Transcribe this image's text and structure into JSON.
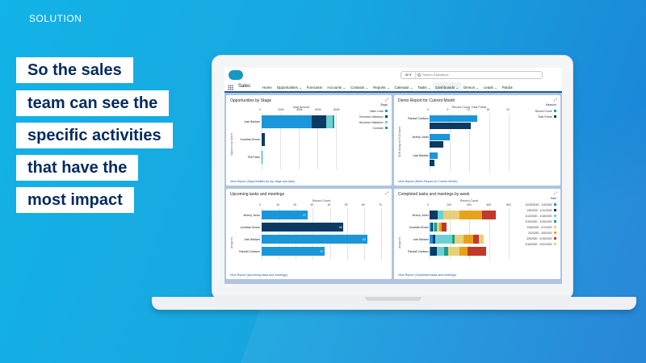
{
  "slide": {
    "label": "SOLUTION",
    "headline": [
      "So the sales",
      "team can see the",
      "specific activities",
      "that have the",
      "most impact"
    ]
  },
  "sf": {
    "search_scope": "All",
    "search_placeholder": "Search Salesforce",
    "app_name": "Sales",
    "nav": [
      {
        "label": "Home",
        "chev": false
      },
      {
        "label": "Opportunities",
        "chev": true
      },
      {
        "label": "Forecasts",
        "chev": false
      },
      {
        "label": "Accounts",
        "chev": true
      },
      {
        "label": "Contacts",
        "chev": true
      },
      {
        "label": "Reports",
        "chev": true
      },
      {
        "label": "Calendar",
        "chev": true
      },
      {
        "label": "Tasks",
        "chev": true
      },
      {
        "label": "Dashboards",
        "chev": true,
        "active": true
      },
      {
        "label": "Demos",
        "chev": true
      },
      {
        "label": "Leads",
        "chev": true
      },
      {
        "label": "Pardot",
        "chev": false
      }
    ]
  },
  "colors": {
    "blue": "#1b96d9",
    "navy": "#0b3a63",
    "teal": "#6cd0d3",
    "green": "#18a088",
    "yellow": "#e8cf7a",
    "orange": "#e7a21c",
    "red": "#c0392b",
    "purple": "#6a5aa8"
  },
  "chart_data": [
    {
      "id": "p1",
      "type": "bar",
      "title": "Opportunities by Stage",
      "xlabel": "Total Amount",
      "ylabel": "Opportunity Owner",
      "xticks": [
        "0",
        "200k",
        "400k",
        "600k",
        "800k"
      ],
      "xlim": [
        0,
        850
      ],
      "categories": [
        "Josh Baldwin",
        "Jonathan Brown",
        "Phil Parks"
      ],
      "legend_title": "Stage",
      "series": [
        {
          "name": "Sales Lead",
          "color": "#1b96d9",
          "values": [
            540,
            0,
            0
          ]
        },
        {
          "name": "Technical Validation",
          "color": "#0b3a63",
          "values": [
            150,
            35,
            0
          ]
        },
        {
          "name": "Business Validation",
          "color": "#6cd0d3",
          "values": [
            70,
            0,
            0
          ]
        },
        {
          "name": "Contract",
          "color": "#18a088",
          "values": [
            20,
            0,
            8
          ]
        }
      ],
      "link": "View Report (Opportunities by rep stage and date)"
    },
    {
      "id": "p2",
      "type": "bar",
      "title": "Demo Report for Current Month",
      "xlabel": "Record Count, Total Points",
      "ylabel": "SDR Assigned Full Name",
      "xticks": [
        "0",
        "5",
        "10",
        "15",
        "20"
      ],
      "xlim": [
        0,
        20
      ],
      "categories": [
        "Randall Clarkson",
        "Jeremy Jones",
        "Josh Baldwin"
      ],
      "legend_title": "Measure",
      "series": [
        {
          "name": "Record Count",
          "color": "#1b96d9",
          "values": [
            12,
            5,
            2
          ]
        },
        {
          "name": "Total Points",
          "color": "#0b3a63",
          "values": [
            10.5,
            3.5,
            1.3
          ]
        }
      ],
      "link": "View Report (Demo Report for Current Month)"
    },
    {
      "id": "p3",
      "type": "bar",
      "title": "Upcoming tasks and meetings",
      "xlabel": "Record Count",
      "ylabel": "Assigned",
      "xticks": [
        "0",
        "10",
        "20",
        "30",
        "40",
        "50",
        "60",
        "70"
      ],
      "xlim": [
        0,
        70
      ],
      "categories": [
        "Jeremy Jones",
        "Jonathan Brown",
        "Josh Baldwin",
        "Randall Clarkson"
      ],
      "values": [
        27,
        48,
        62,
        37
      ],
      "bar_colors": [
        "#1b96d9",
        "#0b3a63",
        "#1b96d9",
        "#1b96d9"
      ],
      "link": "View Report (Upcoming tasks and meetings)"
    },
    {
      "id": "p4",
      "type": "bar",
      "title": "Completed tasks and meetings by week",
      "xlabel": "Record Count",
      "ylabel": "Assigned",
      "xticks": [
        "0",
        "200",
        "400",
        "600",
        "800"
      ],
      "xlim": [
        0,
        800
      ],
      "categories": [
        "Jeremy Jones",
        "Jonathan Brown",
        "Josh Baldwin",
        "Randall Clarkson"
      ],
      "legend_title": "Date",
      "series": [
        {
          "name": "12/29/2019 - 1/4/2020",
          "color": "#1b96d9",
          "values": [
            0,
            20,
            30,
            10
          ]
        },
        {
          "name": "1/5/2020 - 1/11/2020",
          "color": "#0b3a63",
          "values": [
            80,
            15,
            25,
            60
          ]
        },
        {
          "name": "1/12/2020 - 1/18/2020",
          "color": "#6cd0d3",
          "values": [
            60,
            10,
            170,
            80
          ]
        },
        {
          "name": "1/19/2020 - 1/25/2020",
          "color": "#18a088",
          "values": [
            0,
            30,
            25,
            40
          ]
        },
        {
          "name": "1/26/2020 - 2/1/2020",
          "color": "#e8cf7a",
          "values": [
            160,
            25,
            90,
            110
          ]
        },
        {
          "name": "2/2/2020 - 2/8/2020",
          "color": "#e7a21c",
          "values": [
            230,
            25,
            100,
            80
          ]
        },
        {
          "name": "2/9/2020 - 2/15/2020",
          "color": "#c0392b",
          "values": [
            140,
            45,
            60,
            190
          ]
        },
        {
          "name": "2/16/2020 - 2/22/2020",
          "color": "#e8cf7a",
          "values": [
            0,
            0,
            45,
            0
          ]
        }
      ],
      "link": "View Report (Completed tasks and meetings)"
    }
  ]
}
